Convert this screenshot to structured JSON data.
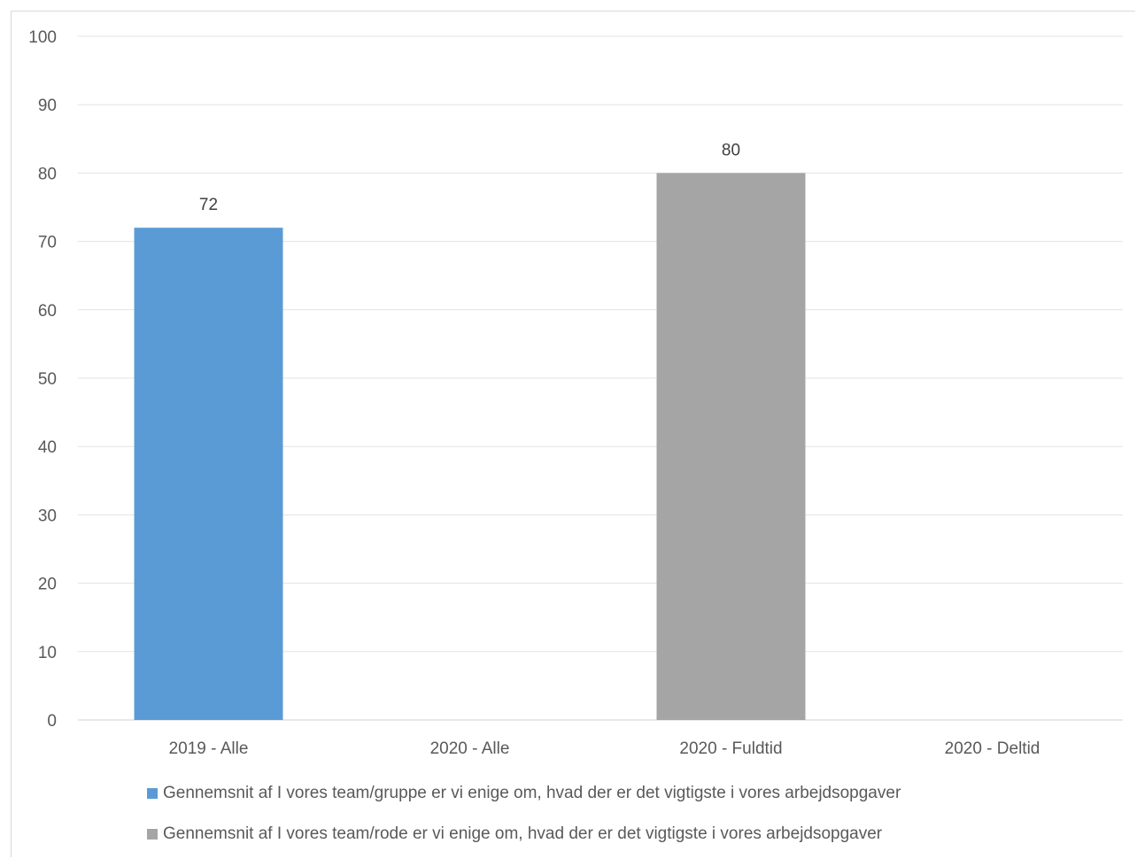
{
  "chart_data": {
    "type": "bar",
    "title": "",
    "xlabel": "",
    "ylabel": "",
    "categories": [
      "2019 - Alle",
      "2020 - Alle",
      "2020 - Fuldtid",
      "2020 - Deltid"
    ],
    "series": [
      {
        "name": "Gennemsnit af I vores team/gruppe er vi enige om, hvad der er det vigtigste i vores arbejdsopgaver",
        "color": "#5b9bd5",
        "values": [
          72,
          null,
          null,
          null
        ]
      },
      {
        "name": "Gennemsnit af I vores team/rode er vi enige om, hvad der er det vigtigste i vores arbejdsopgaver",
        "color": "#a5a5a5",
        "values": [
          null,
          null,
          80,
          null
        ]
      }
    ],
    "ylim": [
      0,
      100
    ],
    "yticks": [
      0,
      10,
      20,
      30,
      40,
      50,
      60,
      70,
      80,
      90,
      100
    ],
    "grid": true,
    "legend_position": "bottom",
    "data_labels": true
  }
}
